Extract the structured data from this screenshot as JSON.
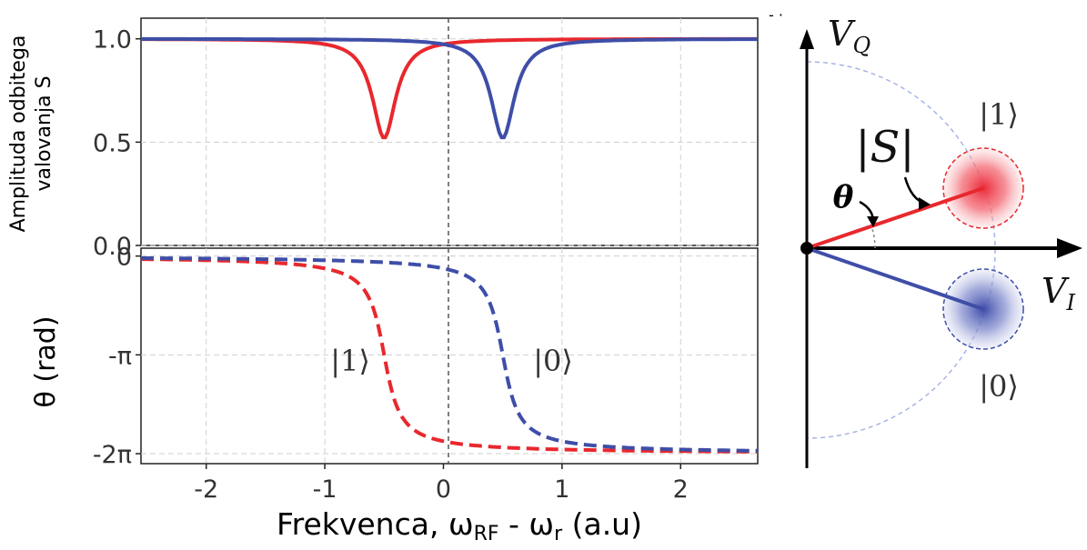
{
  "chart_data": [
    {
      "type": "line",
      "panel": "top",
      "ylabel_line1": "Amplituda odbitega",
      "ylabel_line2": "valovanja S",
      "xlim": [
        -2.55,
        2.65
      ],
      "ylim": [
        0.0,
        1.1
      ],
      "yticks": [
        {
          "v": 0.0,
          "label": "0.0"
        },
        {
          "v": 0.5,
          "label": "0.5"
        },
        {
          "v": 1.0,
          "label": "1.0"
        }
      ],
      "grid": true,
      "series": [
        {
          "color": "#e8282d",
          "dip_center": -0.5,
          "dip_min": 0.52,
          "width": 0.12,
          "style": "solid"
        },
        {
          "color": "#3e4ea8",
          "dip_center": 0.5,
          "dip_min": 0.52,
          "width": 0.12,
          "style": "solid"
        }
      ],
      "x": [
        -2.55,
        -2.0,
        -1.5,
        -1.2,
        -1.0,
        -0.8,
        -0.7,
        -0.6,
        -0.55,
        -0.5,
        -0.45,
        -0.4,
        -0.3,
        -0.2,
        0.0,
        0.2,
        0.3,
        0.4,
        0.45,
        0.5,
        0.55,
        0.6,
        0.7,
        0.8,
        1.0,
        1.2,
        1.5,
        2.0,
        2.65
      ]
    },
    {
      "type": "line",
      "panel": "bottom",
      "ylabel": "θ (rad)",
      "xlabel": "Frekvenca, ω",
      "xlabel_sub1": "RF",
      "xlabel_mid": " - ω",
      "xlabel_sub2": "r",
      "xlabel_tail": " (a.u)",
      "xlim": [
        -2.55,
        2.65
      ],
      "ylim": [
        -6.6,
        0.25
      ],
      "yticks": [
        {
          "v": 0,
          "label": "0"
        },
        {
          "v": -3.14159,
          "label": "-π"
        },
        {
          "v": -6.28318,
          "label": "-2π"
        }
      ],
      "xticks": [
        {
          "v": -2,
          "label": "-2"
        },
        {
          "v": -1,
          "label": "-1"
        },
        {
          "v": 0,
          "label": "0"
        },
        {
          "v": 1,
          "label": "1"
        },
        {
          "v": 2,
          "label": "2"
        }
      ],
      "grid": true,
      "series": [
        {
          "name": "|1⟩",
          "color": "#e8282d",
          "step_center": -0.5,
          "width": 0.1,
          "style": "dashed"
        },
        {
          "name": "|0⟩",
          "color": "#3e4ea8",
          "step_center": 0.5,
          "width": 0.1,
          "style": "dashed"
        }
      ]
    }
  ],
  "iq_diagram": {
    "vq_label": "V",
    "vq_sub": "Q",
    "vi_label": "V",
    "vi_sub": "I",
    "s_label": "|S|",
    "theta_label": "θ",
    "state1_label": "|1⟩",
    "state0_label": "|0⟩",
    "red": "#e8282d",
    "blue": "#3e4ea8",
    "circle_color": "#a8b4e6"
  }
}
